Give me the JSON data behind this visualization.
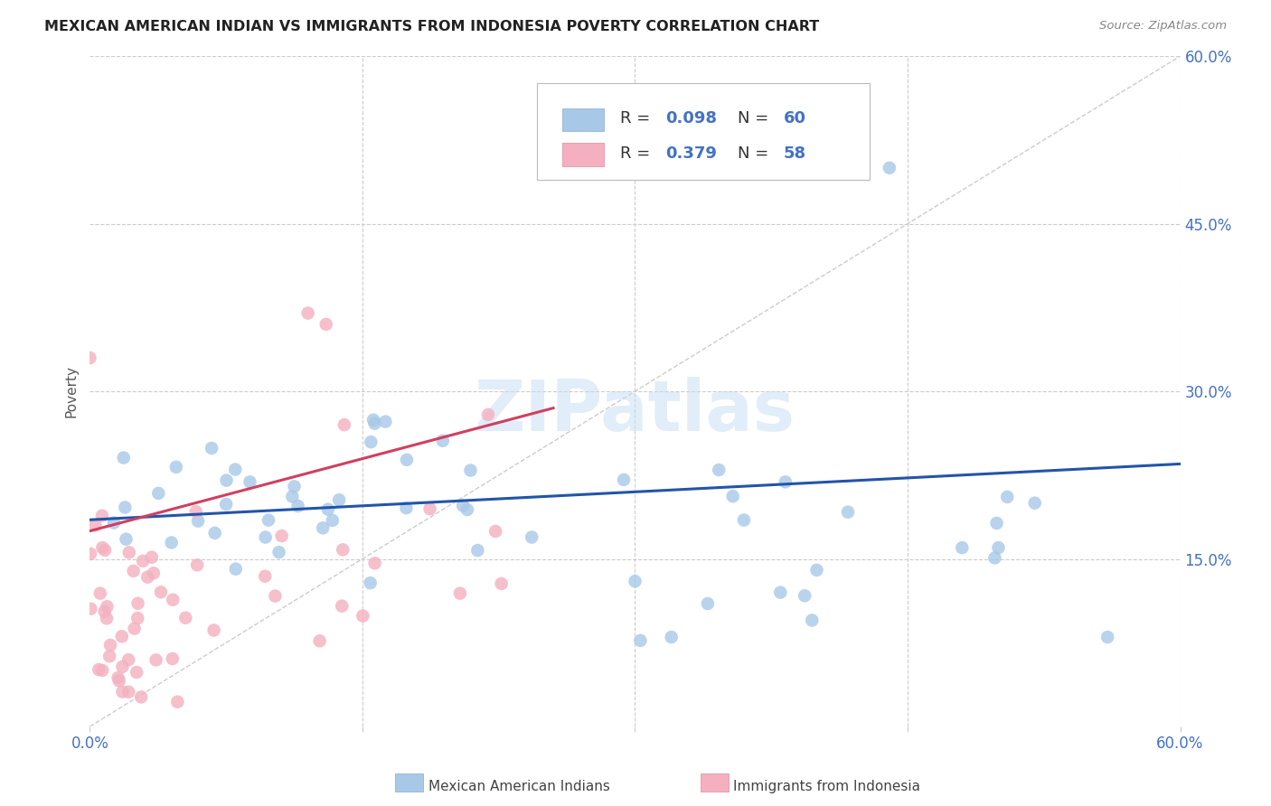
{
  "title": "MEXICAN AMERICAN INDIAN VS IMMIGRANTS FROM INDONESIA POVERTY CORRELATION CHART",
  "source": "Source: ZipAtlas.com",
  "ylabel": "Poverty",
  "xlim": [
    0.0,
    0.6
  ],
  "ylim": [
    0.0,
    0.6
  ],
  "watermark_text": "ZIPatlas",
  "series1_color": "#a8c8e8",
  "series2_color": "#f4b0c0",
  "series1_label": "Mexican American Indians",
  "series2_label": "Immigrants from Indonesia",
  "series1_R": 0.098,
  "series1_N": 60,
  "series2_R": 0.379,
  "series2_N": 58,
  "series1_line_color": "#2255aa",
  "series2_line_color": "#d04060",
  "axis_label_color": "#4472c4",
  "title_color": "#222222",
  "source_color": "#888888",
  "grid_color": "#cccccc",
  "background_color": "#ffffff",
  "legend_bg": "#ffffff",
  "legend_border": "#cccccc"
}
